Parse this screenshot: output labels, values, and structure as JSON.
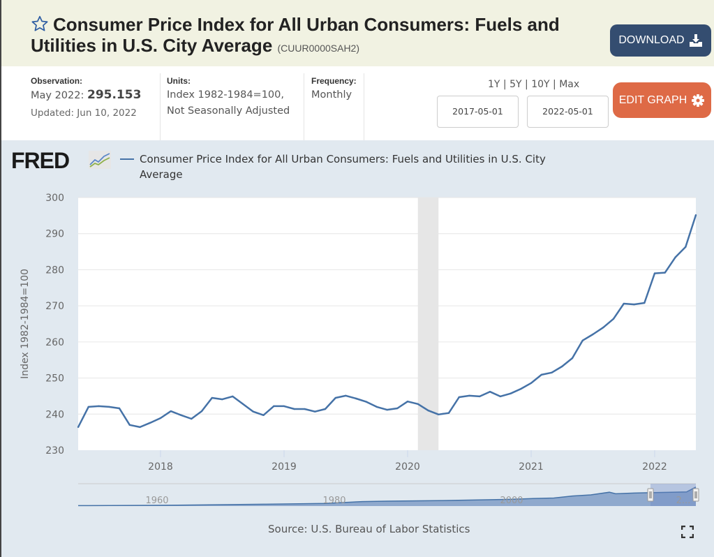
{
  "header": {
    "title": "Consumer Price Index for All Urban Consumers: Fuels and Utilities in U.S. City Average",
    "series_id": "(CUUR0000SAH2)",
    "download_label": "DOWNLOAD",
    "star_icon": "star-outline-icon",
    "download_icon": "download-icon"
  },
  "meta": {
    "observation_label": "Observation:",
    "observation_period": "May 2022:",
    "observation_value": "295.153",
    "updated": "Updated: Jun 10, 2022",
    "units_label": "Units:",
    "units_line1": "Index 1982-1984=100,",
    "units_line2": "Not Seasonally Adjusted",
    "frequency_label": "Frequency:",
    "frequency_value": "Monthly"
  },
  "controls": {
    "ranges": [
      "1Y",
      "5Y",
      "10Y",
      "Max"
    ],
    "start_date": "2017-05-01",
    "end_date": "2022-05-01",
    "edit_label": "EDIT GRAPH",
    "edit_icon": "gear-icon"
  },
  "footer": {
    "source": "Source: U.S. Bureau of Labor Statistics",
    "fullscreen_icon": "fullscreen-icon"
  },
  "logo": "FRED",
  "colors": {
    "line": "#4572a7",
    "recession": "#e6e6e6",
    "download_button": "#344d70",
    "edit_button": "#de6a46"
  },
  "chart_data": {
    "type": "line",
    "title": "",
    "legend": [
      "Consumer Price Index for All Urban Consumers: Fuels and Utilities in U.S. City Average"
    ],
    "legend_placement": "top-left",
    "xlabel": "",
    "ylabel": "Index 1982-1984=100",
    "ylim": [
      230,
      300
    ],
    "yticks": [
      230,
      240,
      250,
      260,
      270,
      280,
      290,
      300
    ],
    "xlim": [
      "2017-05",
      "2022-05"
    ],
    "xticks": [
      "2018",
      "2019",
      "2020",
      "2021",
      "2022"
    ],
    "grid": true,
    "recession_shading": [
      [
        "2020-02",
        "2020-04"
      ]
    ],
    "navigator_ticks": [
      "1960",
      "1980",
      "2000",
      "2..."
    ],
    "x": [
      "2017-05",
      "2017-06",
      "2017-07",
      "2017-08",
      "2017-09",
      "2017-10",
      "2017-11",
      "2017-12",
      "2018-01",
      "2018-02",
      "2018-03",
      "2018-04",
      "2018-05",
      "2018-06",
      "2018-07",
      "2018-08",
      "2018-09",
      "2018-10",
      "2018-11",
      "2018-12",
      "2019-01",
      "2019-02",
      "2019-03",
      "2019-04",
      "2019-05",
      "2019-06",
      "2019-07",
      "2019-08",
      "2019-09",
      "2019-10",
      "2019-11",
      "2019-12",
      "2020-01",
      "2020-02",
      "2020-03",
      "2020-04",
      "2020-05",
      "2020-06",
      "2020-07",
      "2020-08",
      "2020-09",
      "2020-10",
      "2020-11",
      "2020-12",
      "2021-01",
      "2021-02",
      "2021-03",
      "2021-04",
      "2021-05",
      "2021-06",
      "2021-07",
      "2021-08",
      "2021-09",
      "2021-10",
      "2021-11",
      "2021-12",
      "2022-01",
      "2022-02",
      "2022-03",
      "2022-04",
      "2022-05"
    ],
    "series": [
      {
        "name": "CUUR0000SAH2",
        "values": [
          236.4,
          242.0,
          242.2,
          242.0,
          241.6,
          237.0,
          236.4,
          237.6,
          238.9,
          240.8,
          239.7,
          238.7,
          240.8,
          244.5,
          244.1,
          244.9,
          242.8,
          240.7,
          239.7,
          242.2,
          242.2,
          241.4,
          241.4,
          240.7,
          241.4,
          244.5,
          245.1,
          244.3,
          243.4,
          242.0,
          241.2,
          241.6,
          243.5,
          242.8,
          241.0,
          239.9,
          240.3,
          244.7,
          245.1,
          244.9,
          246.2,
          244.9,
          245.7,
          247.0,
          248.6,
          250.9,
          251.5,
          253.2,
          255.5,
          260.4,
          262.1,
          264.0,
          266.4,
          270.6,
          270.4,
          270.8,
          279.0,
          279.2,
          283.4,
          286.3,
          295.153
        ]
      }
    ]
  }
}
